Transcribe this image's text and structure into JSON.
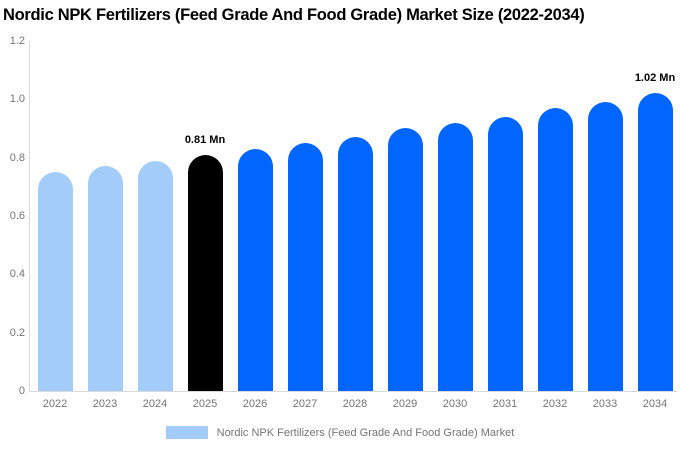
{
  "title": "Nordic NPK Fertilizers (Feed Grade And Food Grade) Market Size (2022-2034)",
  "chart_data": {
    "type": "bar",
    "title": "Nordic NPK Fertilizers (Feed Grade And Food Grade) Market Size (2022-2034)",
    "xlabel": "",
    "ylabel": "",
    "unit": "Mn",
    "ylim": [
      0,
      1.2
    ],
    "grid": false,
    "y_ticks": [
      "1.2",
      "1.0",
      "0.8",
      "0.6",
      "0.4",
      "0.2",
      "0"
    ],
    "categories": [
      "2022",
      "2023",
      "2024",
      "2025",
      "2026",
      "2027",
      "2028",
      "2029",
      "2030",
      "2031",
      "2032",
      "2033",
      "2034"
    ],
    "values": [
      0.75,
      0.77,
      0.79,
      0.81,
      0.83,
      0.85,
      0.87,
      0.9,
      0.92,
      0.94,
      0.97,
      0.99,
      1.02
    ],
    "bar_colors": [
      "#A3CCFA",
      "#A3CCFA",
      "#A3CCFA",
      "#000000",
      "#0066FF",
      "#0066FF",
      "#0066FF",
      "#0066FF",
      "#0066FF",
      "#0066FF",
      "#0066FF",
      "#0066FF",
      "#0066FF"
    ],
    "data_labels": {
      "2025": "0.81 Mn",
      "2034": "1.02 Mn"
    },
    "colors": {
      "historical": "#A3CCFA",
      "base_year": "#000000",
      "forecast": "#0066FF",
      "axis_line": "#D9D9D9",
      "tick_text": "#757575"
    },
    "legend_position": "bottom-center"
  },
  "legend": {
    "label": "Nordic NPK Fertilizers (Feed Grade And Food Grade) Market",
    "swatch_color": "#A3CCFA"
  }
}
